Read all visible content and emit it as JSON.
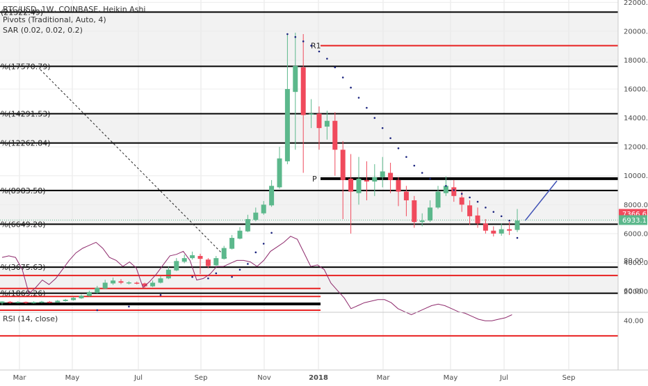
{
  "legend": {
    "symbol": "BTC/USD, 1W, COINBASE, Heikin Ashi",
    "pivots": "Pivots (Traditional, Auto, 4)",
    "sar": "SAR (0.02, 0.02, 0.2)",
    "rsi": "RSI (14, close)"
  },
  "colors": {
    "up": "#5cb88c",
    "down": "#f04a5c",
    "level_line": "#000000",
    "resistance_red": "#e82020",
    "sar_dot": "#1a237e",
    "rsi_line": "#8e2a6c",
    "projection": "#3f51b5",
    "background_band": "#f2f2f2"
  },
  "chart_data": {
    "type": "line",
    "title": "BTC/USD, 1W, COINBASE, Heikin Ashi",
    "x_tick_labels": [
      "Mar",
      "May",
      "Jul",
      "Sep",
      "Nov",
      "2018",
      "Mar",
      "May",
      "Jul",
      "Sep"
    ],
    "price_axis": {
      "ylim": [
        0,
        22000
      ],
      "ticks": [
        2000,
        4000,
        6000,
        8000,
        10000,
        12000,
        14000,
        16000,
        18000,
        20000,
        22000
      ],
      "tick_labels": [
        "2000.00",
        "4000.00",
        "6000.00",
        "8000.00",
        "10000.00",
        "12000.00",
        "14000.00",
        "16000.00",
        "18000.00",
        "20000.00",
        "22000.00"
      ]
    },
    "rsi_axis": {
      "ylim": [
        30,
        95
      ],
      "ticks": [
        40,
        60,
        80
      ],
      "tick_labels": [
        "40.00",
        "60.00",
        "80.00"
      ],
      "bands": [
        70,
        30
      ]
    },
    "price_badges": [
      {
        "value": 7366.67,
        "label": "7366.67",
        "color": "#f04a5c"
      },
      {
        "value": 6933.17,
        "label": "6933.17",
        "color": "#5cb88c"
      }
    ],
    "fib_levels": [
      {
        "value": 21322.49,
        "label": "(21322.49)"
      },
      {
        "value": 17570.79,
        "label": "%(17570.79)"
      },
      {
        "value": 14291.53,
        "label": "%(14291.53)"
      },
      {
        "value": 12262.84,
        "label": "%(12262.84)"
      },
      {
        "value": 8983.58,
        "label": "%(8983.58)"
      },
      {
        "value": 6649.2,
        "label": "%(6649.20)"
      },
      {
        "value": 3675.63,
        "label": "%(3675.63)"
      },
      {
        "value": 1869.26,
        "label": "%(1869.26)"
      }
    ],
    "pivots": [
      {
        "label": "R1",
        "value": 19000
      },
      {
        "label": "P",
        "value": 9800
      }
    ],
    "red_support_lines": [
      2200,
      1650,
      1150,
      700
    ],
    "candles": [
      [
        1200,
        1300,
        1100,
        1320,
        1050
      ],
      [
        1280,
        1250,
        1180,
        1330,
        1160
      ],
      [
        1250,
        1270,
        1200,
        1320,
        1180
      ],
      [
        1270,
        1200,
        1170,
        1300,
        1150
      ],
      [
        1210,
        1260,
        1180,
        1310,
        1160
      ],
      [
        1250,
        1290,
        1220,
        1340,
        1200
      ],
      [
        1280,
        1240,
        1220,
        1330,
        1190
      ],
      [
        1240,
        1350,
        1230,
        1400,
        1210
      ],
      [
        1330,
        1420,
        1310,
        1480,
        1290
      ],
      [
        1400,
        1550,
        1380,
        1620,
        1360
      ],
      [
        1520,
        1700,
        1500,
        1780,
        1480
      ],
      [
        1680,
        1950,
        1660,
        2050,
        1640
      ],
      [
        1900,
        2250,
        1880,
        2380,
        1860
      ],
      [
        2200,
        2600,
        2180,
        2800,
        2150
      ],
      [
        2550,
        2750,
        2500,
        2950,
        2450
      ],
      [
        2700,
        2600,
        2550,
        2850,
        2500
      ],
      [
        2600,
        2620,
        2550,
        2700,
        2480
      ],
      [
        2600,
        2550,
        2520,
        2680,
        2480
      ],
      [
        2550,
        2350,
        2300,
        2600,
        2250
      ],
      [
        2350,
        2600,
        2330,
        2750,
        2300
      ],
      [
        2600,
        2900,
        2580,
        3100,
        2550
      ],
      [
        2900,
        3500,
        2880,
        3700,
        2850
      ],
      [
        3450,
        4100,
        3430,
        4300,
        3400
      ],
      [
        4050,
        4300,
        4030,
        4550,
        3950
      ],
      [
        4300,
        4500,
        4280,
        4750,
        4200
      ],
      [
        4450,
        4250,
        4150,
        4600,
        3200
      ],
      [
        4200,
        3750,
        3700,
        4300,
        3600
      ],
      [
        3800,
        4300,
        3780,
        4450,
        3750
      ],
      [
        4250,
        5000,
        4230,
        5150,
        4200
      ],
      [
        4950,
        5700,
        4930,
        5900,
        4900
      ],
      [
        5650,
        6200,
        5630,
        6450,
        5600
      ],
      [
        6150,
        7000,
        6130,
        7300,
        6100
      ],
      [
        6950,
        7450,
        6900,
        7800,
        6850
      ],
      [
        7400,
        8000,
        7350,
        8250,
        7300
      ],
      [
        7950,
        9300,
        7900,
        9700,
        7850
      ],
      [
        9200,
        11200,
        9150,
        12000,
        9100
      ],
      [
        11000,
        16000,
        10900,
        19800,
        10800
      ],
      [
        15800,
        17600,
        12000,
        19900,
        11800
      ],
      [
        17500,
        14200,
        13800,
        19800,
        10200
      ],
      [
        14300,
        14300,
        13600,
        15300,
        13300
      ],
      [
        14300,
        13300,
        13200,
        14800,
        11800
      ],
      [
        13400,
        13800,
        13300,
        14500,
        12500
      ],
      [
        13800,
        11800,
        11000,
        14400,
        10000
      ],
      [
        11800,
        9700,
        9500,
        12400,
        7000
      ],
      [
        9800,
        8900,
        8700,
        11500,
        6000
      ],
      [
        8800,
        9800,
        8700,
        11300,
        8000
      ],
      [
        9700,
        9600,
        9400,
        11000,
        8300
      ],
      [
        9600,
        9900,
        9500,
        10800,
        8600
      ],
      [
        9900,
        10300,
        9800,
        11300,
        9200
      ],
      [
        10200,
        9700,
        9500,
        10900,
        8800
      ],
      [
        9700,
        8900,
        8700,
        9900,
        7900
      ],
      [
        8900,
        8300,
        8000,
        9300,
        7200
      ],
      [
        8300,
        6800,
        6500,
        8600,
        6400
      ],
      [
        6800,
        6900,
        6600,
        7400,
        6500
      ],
      [
        6900,
        7800,
        6850,
        8300,
        6800
      ],
      [
        7800,
        8900,
        7750,
        9300,
        7700
      ],
      [
        8800,
        9300,
        8750,
        9950,
        8600
      ],
      [
        9200,
        8600,
        8400,
        9700,
        8200
      ],
      [
        8500,
        8000,
        7900,
        8900,
        7500
      ],
      [
        7950,
        7200,
        7100,
        8300,
        6600
      ],
      [
        7250,
        6700,
        6600,
        7800,
        6400
      ],
      [
        6700,
        6200,
        6100,
        7000,
        6000
      ],
      [
        6200,
        6000,
        5900,
        6500,
        5800
      ],
      [
        6000,
        6300,
        5950,
        6700,
        5850
      ],
      [
        6300,
        6200,
        6100,
        6800,
        5900
      ],
      [
        6250,
        6900,
        6200,
        7700,
        6100
      ]
    ],
    "sar_dots": [
      [
        12,
        700
      ],
      [
        16,
        950
      ],
      [
        20,
        1750
      ],
      [
        24,
        3000
      ],
      [
        26,
        2900
      ],
      [
        27,
        3250
      ],
      [
        29,
        3000
      ],
      [
        30,
        3500
      ],
      [
        31,
        3900
      ],
      [
        32,
        4700
      ],
      [
        33,
        5300
      ],
      [
        34,
        6050
      ],
      [
        36,
        19800
      ],
      [
        37,
        19600
      ],
      [
        38,
        19300
      ],
      [
        39,
        19000
      ],
      [
        40,
        18600
      ],
      [
        41,
        18100
      ],
      [
        42,
        17500
      ],
      [
        43,
        16800
      ],
      [
        44,
        16100
      ],
      [
        45,
        15400
      ],
      [
        46,
        14700
      ],
      [
        47,
        14000
      ],
      [
        48,
        13300
      ],
      [
        49,
        12600
      ],
      [
        50,
        11900
      ],
      [
        51,
        11300
      ],
      [
        52,
        10700
      ],
      [
        53,
        10200
      ],
      [
        54,
        9800
      ],
      [
        56,
        9300
      ],
      [
        57,
        9000
      ],
      [
        58,
        8750
      ],
      [
        59,
        8500
      ],
      [
        60,
        8200
      ],
      [
        61,
        7800
      ],
      [
        62,
        7500
      ],
      [
        63,
        7200
      ],
      [
        64,
        6900
      ],
      [
        65,
        5700
      ]
    ],
    "rsi_values": [
      82,
      83,
      82,
      74,
      58,
      62,
      67,
      64,
      68,
      74,
      80,
      85,
      88,
      90,
      92,
      88,
      82,
      80,
      76,
      79,
      75,
      62,
      66,
      71,
      77,
      83,
      84,
      86,
      80,
      67,
      68,
      71,
      76,
      76,
      78,
      80,
      80,
      79,
      76,
      80,
      86,
      89,
      92,
      96,
      94,
      85,
      76,
      77,
      74,
      65,
      60,
      55,
      48,
      50,
      52,
      53,
      54,
      54,
      52,
      48,
      46,
      44,
      46,
      48,
      50,
      51,
      50,
      48,
      46,
      45,
      43,
      41,
      40,
      40,
      41,
      42,
      44
    ],
    "projection": [
      [
        66,
        6900
      ],
      [
        70,
        9650
      ]
    ]
  }
}
